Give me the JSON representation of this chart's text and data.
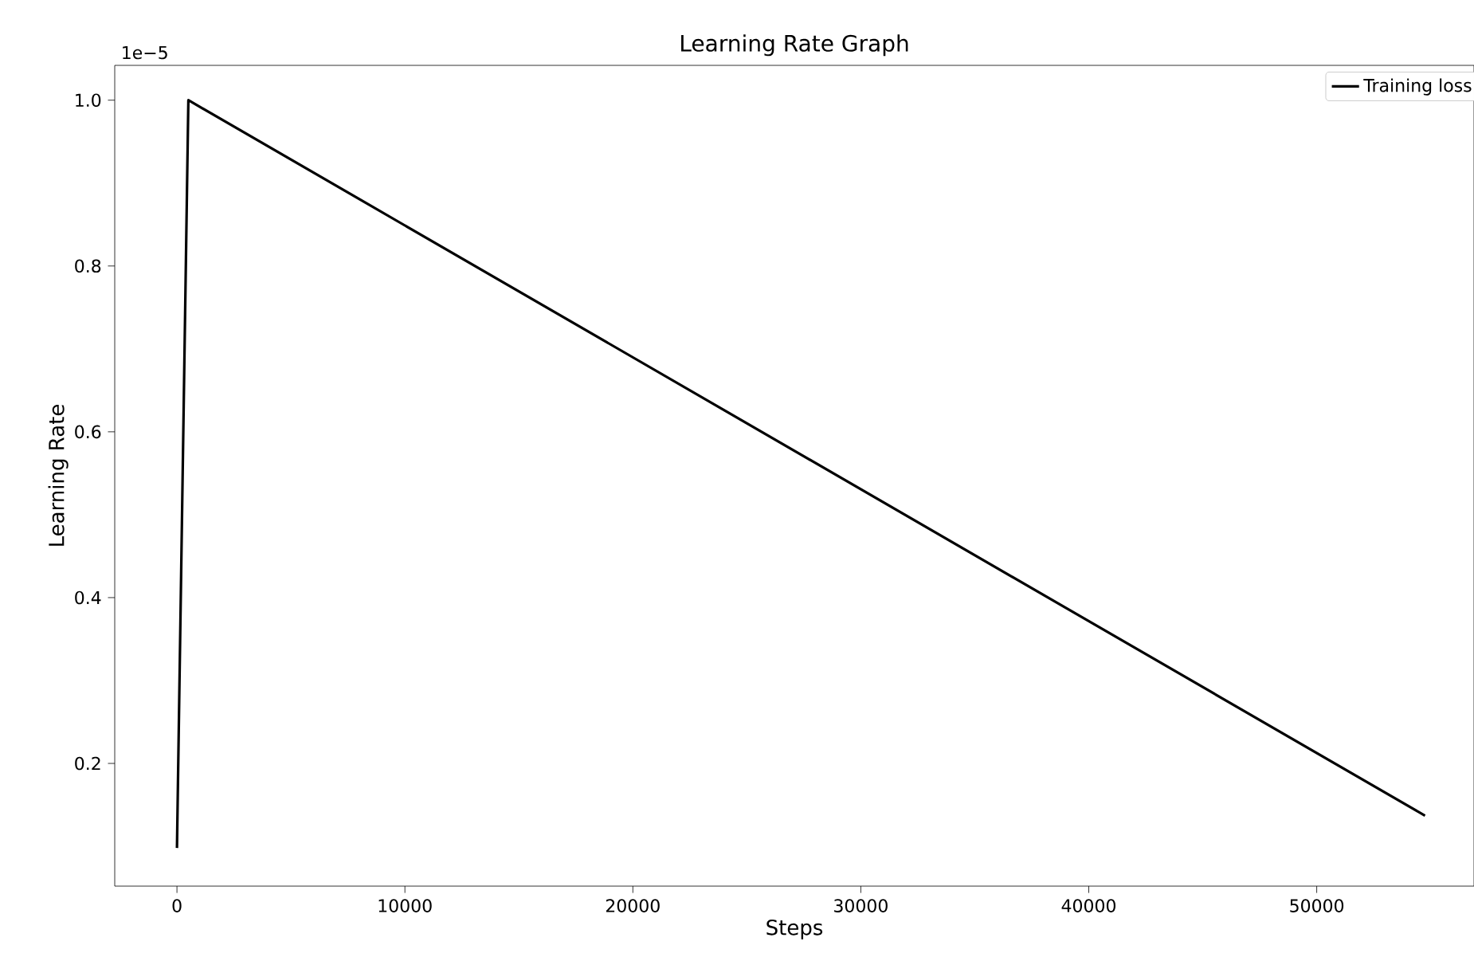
{
  "chart_data": {
    "type": "line",
    "title": "Learning Rate Graph",
    "xlabel": "Steps",
    "ylabel": "Learning Rate",
    "annotations": [
      "1e−5"
    ],
    "x": [
      0,
      500,
      54750
    ],
    "series": [
      {
        "name": "Training loss",
        "color": "#000000",
        "values": [
          0.098,
          1.0,
          0.137
        ]
      }
    ],
    "xlim": [
      -2730,
      56900
    ],
    "ylim": [
      0.052,
      1.042
    ],
    "xticks": [
      0,
      10000,
      20000,
      30000,
      40000,
      50000
    ],
    "yticks": [
      0.2,
      0.4,
      0.6,
      0.8,
      {
        "value": 1.0,
        "label": "1.0"
      }
    ],
    "legend": "top right",
    "grid": false,
    "marker": "none",
    "line_style": "solid"
  }
}
